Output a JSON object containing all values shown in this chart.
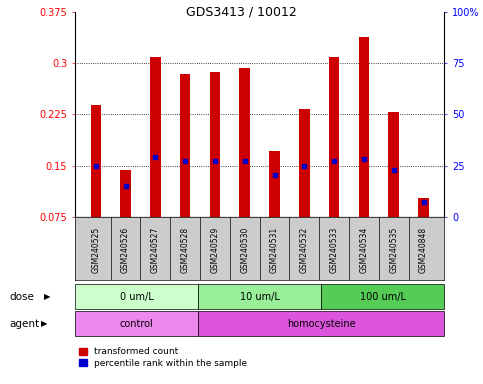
{
  "title": "GDS3413 / 10012",
  "samples": [
    "GSM240525",
    "GSM240526",
    "GSM240527",
    "GSM240528",
    "GSM240529",
    "GSM240530",
    "GSM240531",
    "GSM240532",
    "GSM240533",
    "GSM240534",
    "GSM240535",
    "GSM240848"
  ],
  "transformed_count": [
    0.238,
    0.143,
    0.308,
    0.284,
    0.287,
    0.293,
    0.172,
    0.233,
    0.308,
    0.338,
    0.228,
    0.103
  ],
  "percentile_rank": [
    0.15,
    0.12,
    0.162,
    0.157,
    0.157,
    0.157,
    0.137,
    0.15,
    0.157,
    0.16,
    0.143,
    0.097
  ],
  "bar_color": "#cc0000",
  "dot_color": "#0000cc",
  "ylim_left": [
    0.075,
    0.375
  ],
  "ylim_right": [
    0,
    100
  ],
  "yticks_left": [
    0.075,
    0.15,
    0.225,
    0.3,
    0.375
  ],
  "yticks_right": [
    0,
    25,
    50,
    75,
    100
  ],
  "ytick_labels_left": [
    "0.075",
    "0.15",
    "0.225",
    "0.3",
    "0.375"
  ],
  "ytick_labels_right": [
    "0",
    "25",
    "50",
    "75",
    "100%"
  ],
  "gridlines": [
    0.15,
    0.225,
    0.3
  ],
  "dose_groups": [
    {
      "label": "0 um/L",
      "start": 0,
      "end": 4,
      "color": "#ccffcc"
    },
    {
      "label": "10 um/L",
      "start": 4,
      "end": 8,
      "color": "#99ee99"
    },
    {
      "label": "100 um/L",
      "start": 8,
      "end": 12,
      "color": "#55cc55"
    }
  ],
  "agent_groups": [
    {
      "label": "control",
      "start": 0,
      "end": 4,
      "color": "#ee88ee"
    },
    {
      "label": "homocysteine",
      "start": 4,
      "end": 12,
      "color": "#dd55dd"
    }
  ],
  "legend_items": [
    {
      "label": "transformed count",
      "color": "#cc0000"
    },
    {
      "label": "percentile rank within the sample",
      "color": "#0000cc"
    }
  ],
  "bar_width": 0.35,
  "background_color": "#ffffff",
  "plot_bg": "#ffffff",
  "xtick_bg": "#cccccc",
  "dose_label": "dose",
  "agent_label": "agent"
}
